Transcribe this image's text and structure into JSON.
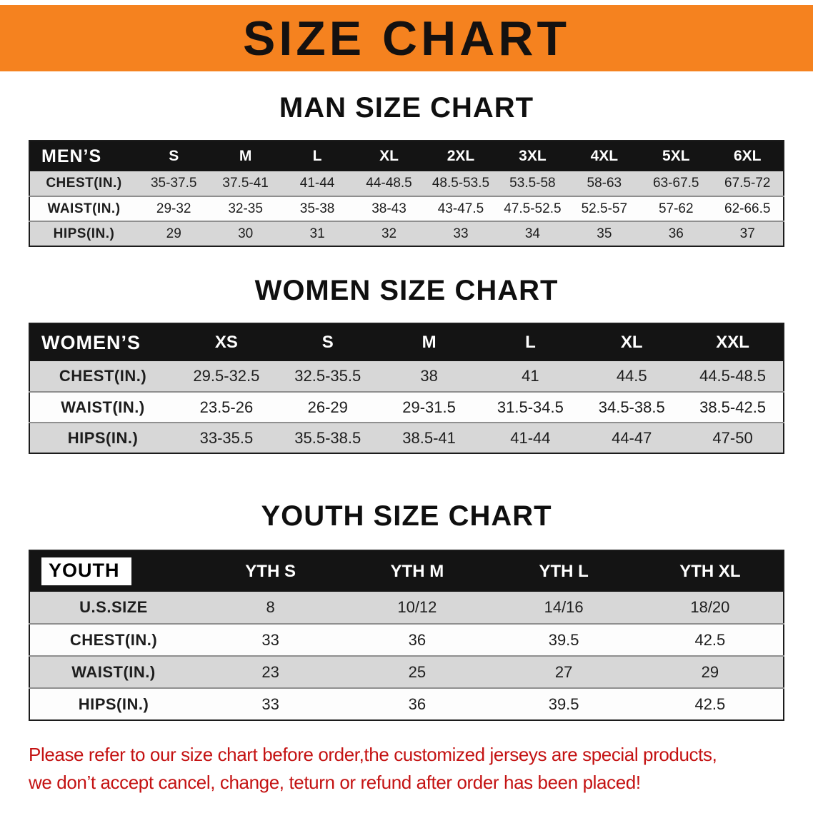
{
  "banner": {
    "title": "SIZE CHART"
  },
  "colors": {
    "banner_bg": "#F5821F",
    "header_row_bg": "#141414",
    "stripe_row_bg": "#D7D7D7",
    "disclaimer_text": "#C41212"
  },
  "sections": [
    {
      "id": "men",
      "heading": "MAN SIZE CHART",
      "table": {
        "header": [
          "MEN’S",
          "S",
          "M",
          "L",
          "XL",
          "2XL",
          "3XL",
          "4XL",
          "5XL",
          "6XL"
        ],
        "rows": [
          {
            "label": "CHEST(IN.)",
            "values": [
              "35-37.5",
              "37.5-41",
              "41-44",
              "44-48.5",
              "48.5-53.5",
              "53.5-58",
              "58-63",
              "63-67.5",
              "67.5-72"
            ]
          },
          {
            "label": "WAIST(IN.)",
            "values": [
              "29-32",
              "32-35",
              "35-38",
              "38-43",
              "43-47.5",
              "47.5-52.5",
              "52.5-57",
              "57-62",
              "62-66.5"
            ]
          },
          {
            "label": "HIPS(IN.)",
            "values": [
              "29",
              "30",
              "31",
              "32",
              "33",
              "34",
              "35",
              "36",
              "37"
            ]
          }
        ]
      }
    },
    {
      "id": "women",
      "heading": "WOMEN SIZE CHART",
      "table": {
        "header": [
          "WOMEN’S",
          "XS",
          "S",
          "M",
          "L",
          "XL",
          "XXL"
        ],
        "rows": [
          {
            "label": "CHEST(IN.)",
            "values": [
              "29.5-32.5",
              "32.5-35.5",
              "38",
              "41",
              "44.5",
              "44.5-48.5"
            ]
          },
          {
            "label": "WAIST(IN.)",
            "values": [
              "23.5-26",
              "26-29",
              "29-31.5",
              "31.5-34.5",
              "34.5-38.5",
              "38.5-42.5"
            ]
          },
          {
            "label": "HIPS(IN.)",
            "values": [
              "33-35.5",
              "35.5-38.5",
              "38.5-41",
              "41-44",
              "44-47",
              "47-50"
            ]
          }
        ]
      }
    },
    {
      "id": "youth",
      "heading": "YOUTH SIZE CHART",
      "table": {
        "header": [
          "YOUTH",
          "YTH S",
          "YTH M",
          "YTH L",
          "YTH XL"
        ],
        "rows": [
          {
            "label": "U.S.SIZE",
            "values": [
              "8",
              "10/12",
              "14/16",
              "18/20"
            ]
          },
          {
            "label": "CHEST(IN.)",
            "values": [
              "33",
              "36",
              "39.5",
              "42.5"
            ]
          },
          {
            "label": "WAIST(IN.)",
            "values": [
              "23",
              "25",
              "27",
              "29"
            ]
          },
          {
            "label": "HIPS(IN.)",
            "values": [
              "33",
              "36",
              "39.5",
              "42.5"
            ]
          }
        ]
      }
    }
  ],
  "disclaimer": {
    "lines": [
      "Please refer to our size chart before order,the customized jerseys are special products,",
      "we don’t accept cancel, change, teturn or refund after order has been placed!"
    ]
  }
}
